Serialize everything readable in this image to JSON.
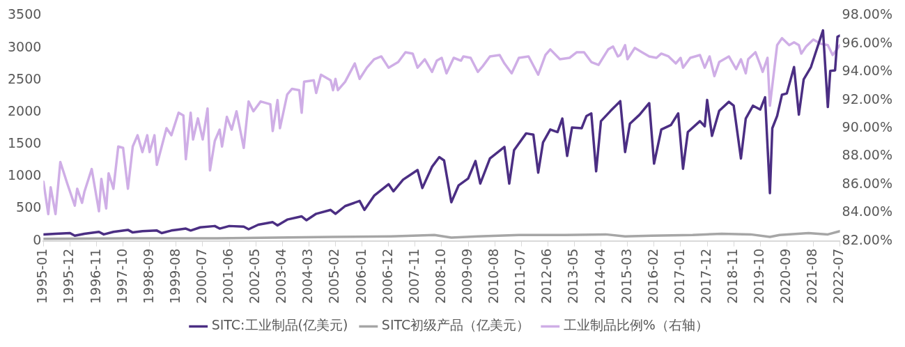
{
  "chart_data": {
    "type": "line",
    "xlim": [
      "1995-01",
      "2022-07"
    ],
    "xticks": [
      "1995-01",
      "1995-12",
      "1996-11",
      "1997-10",
      "1998-09",
      "1999-08",
      "2000-07",
      "2001-06",
      "2002-05",
      "2003-04",
      "2004-03",
      "2005-02",
      "2006-01",
      "2006-12",
      "2007-11",
      "2008-10",
      "2009-09",
      "2010-08",
      "2011-07",
      "2012-06",
      "2013-05",
      "2014-04",
      "2015-03",
      "2016-02",
      "2017-01",
      "2017-12",
      "2018-11",
      "2019-10",
      "2020-09",
      "2021-08",
      "2022-07"
    ],
    "ylim": [
      0,
      3500
    ],
    "yticks": [
      0,
      500,
      1000,
      1500,
      2000,
      2500,
      3000,
      3500
    ],
    "y2lim": [
      82,
      98
    ],
    "y2ticks": [
      {
        "value": 82,
        "label": "82.00%"
      },
      {
        "value": 84,
        "label": "84.00%"
      },
      {
        "value": 86,
        "label": "86.00%"
      },
      {
        "value": 88,
        "label": "88.00%"
      },
      {
        "value": 90,
        "label": "90.00%"
      },
      {
        "value": 92,
        "label": "92.00%"
      },
      {
        "value": 94,
        "label": "94.00%"
      },
      {
        "value": 96,
        "label": "96.00%"
      },
      {
        "value": 98,
        "label": "98.00%"
      }
    ],
    "grid": false,
    "legend": "bottom",
    "marker": "none",
    "line_style": "solid",
    "series": [
      {
        "name": "SITC:工业制品(亿美元)",
        "color": "#4b2e83",
        "x": [
          "1995-01",
          "1995-06",
          "1995-12",
          "1996-02",
          "1996-06",
          "1996-12",
          "1997-02",
          "1997-06",
          "1997-12",
          "1998-02",
          "1998-06",
          "1998-12",
          "1999-02",
          "1999-06",
          "1999-12",
          "2000-02",
          "2000-06",
          "2000-12",
          "2001-02",
          "2001-06",
          "2001-12",
          "2002-02",
          "2002-06",
          "2002-12",
          "2003-02",
          "2003-06",
          "2003-12",
          "2004-02",
          "2004-06",
          "2004-12",
          "2005-02",
          "2005-06",
          "2005-12",
          "2006-02",
          "2006-06",
          "2006-12",
          "2007-02",
          "2007-06",
          "2007-12",
          "2008-02",
          "2008-06",
          "2008-09",
          "2008-11",
          "2009-02",
          "2009-05",
          "2009-09",
          "2009-12",
          "2010-02",
          "2010-06",
          "2010-10",
          "2010-12",
          "2011-02",
          "2011-04",
          "2011-09",
          "2011-12",
          "2012-02",
          "2012-04",
          "2012-07",
          "2012-10",
          "2012-12",
          "2013-02",
          "2013-04",
          "2013-08",
          "2013-10",
          "2013-12",
          "2014-02",
          "2014-04",
          "2014-08",
          "2014-12",
          "2015-02",
          "2015-04",
          "2015-08",
          "2015-12",
          "2016-02",
          "2016-05",
          "2016-09",
          "2016-12",
          "2017-02",
          "2017-04",
          "2017-09",
          "2017-11",
          "2017-12",
          "2018-02",
          "2018-05",
          "2018-09",
          "2018-11",
          "2019-02",
          "2019-04",
          "2019-07",
          "2019-10",
          "2019-12",
          "2020-02",
          "2020-03",
          "2020-05",
          "2020-07",
          "2020-09",
          "2020-12",
          "2021-02",
          "2021-04",
          "2021-07",
          "2021-09",
          "2021-12",
          "2022-02",
          "2022-03",
          "2022-05",
          "2022-06",
          "2022-07"
        ],
        "values": [
          100,
          110,
          120,
          80,
          110,
          140,
          100,
          140,
          170,
          130,
          150,
          160,
          120,
          160,
          190,
          160,
          210,
          230,
          190,
          230,
          220,
          180,
          250,
          290,
          240,
          330,
          380,
          320,
          420,
          480,
          420,
          540,
          620,
          480,
          700,
          880,
          770,
          950,
          1100,
          820,
          1150,
          1300,
          1250,
          600,
          860,
          970,
          1240,
          890,
          1280,
          1400,
          1460,
          890,
          1410,
          1670,
          1650,
          1060,
          1530,
          1730,
          1690,
          1900,
          1320,
          1760,
          1750,
          1940,
          1980,
          1080,
          1860,
          2020,
          2170,
          1380,
          1820,
          1960,
          2140,
          1200,
          1730,
          1800,
          1980,
          1120,
          1690,
          1860,
          1780,
          2190,
          1630,
          2020,
          2160,
          2100,
          1280,
          1900,
          2100,
          2040,
          2230,
          740,
          1750,
          1940,
          2270,
          2290,
          2700,
          1960,
          2510,
          2700,
          2930,
          3270,
          2080,
          2640,
          2650,
          3170,
          3190
        ]
      },
      {
        "name": "SITC初级产品（亿美元）",
        "color": "#a6a6a6",
        "x": [
          "1995-01",
          "1998-01",
          "2001-01",
          "2003-01",
          "2005-01",
          "2007-01",
          "2008-07",
          "2009-02",
          "2010-01",
          "2011-06",
          "2013-01",
          "2014-06",
          "2015-02",
          "2016-01",
          "2017-06",
          "2018-06",
          "2019-06",
          "2020-02",
          "2020-06",
          "2021-06",
          "2022-02",
          "2022-07"
        ],
        "values": [
          30,
          40,
          40,
          50,
          60,
          70,
          90,
          50,
          70,
          90,
          90,
          100,
          70,
          80,
          90,
          110,
          100,
          60,
          90,
          120,
          100,
          150
        ]
      },
      {
        "name": "工业制品比例%（右轴）",
        "color": "#cfaee6",
        "axis": "y2",
        "x": [
          "1995-01",
          "1995-03",
          "1995-04",
          "1995-06",
          "1995-08",
          "1995-11",
          "1996-02",
          "1996-03",
          "1996-05",
          "1996-06",
          "1996-09",
          "1996-12",
          "1997-01",
          "1997-03",
          "1997-04",
          "1997-06",
          "1997-08",
          "1997-10",
          "1997-12",
          "1998-02",
          "1998-04",
          "1998-06",
          "1998-08",
          "1998-09",
          "1998-11",
          "1998-12",
          "1999-02",
          "1999-04",
          "1999-06",
          "1999-09",
          "1999-11",
          "1999-12",
          "2000-02",
          "2000-03",
          "2000-05",
          "2000-07",
          "2000-09",
          "2000-10",
          "2000-12",
          "2001-02",
          "2001-03",
          "2001-05",
          "2001-07",
          "2001-09",
          "2001-12",
          "2002-02",
          "2002-04",
          "2002-07",
          "2002-11",
          "2002-12",
          "2003-02",
          "2003-03",
          "2003-06",
          "2003-08",
          "2003-11",
          "2003-12",
          "2004-01",
          "2004-05",
          "2004-06",
          "2004-08",
          "2004-12",
          "2005-01",
          "2005-02",
          "2005-03",
          "2005-06",
          "2005-10",
          "2005-12",
          "2006-03",
          "2006-06",
          "2006-09",
          "2006-12",
          "2007-04",
          "2007-07",
          "2007-10",
          "2007-12",
          "2008-03",
          "2008-06",
          "2008-08",
          "2008-10",
          "2008-12",
          "2009-03",
          "2009-06",
          "2009-07",
          "2009-10",
          "2010-01",
          "2010-03",
          "2010-06",
          "2010-10",
          "2010-12",
          "2011-03",
          "2011-06",
          "2011-10",
          "2012-02",
          "2012-05",
          "2012-07",
          "2012-11",
          "2013-03",
          "2013-06",
          "2013-09",
          "2013-12",
          "2014-03",
          "2014-07",
          "2014-09",
          "2014-11",
          "2014-12",
          "2015-02",
          "2015-03",
          "2015-06",
          "2015-09",
          "2015-12",
          "2016-03",
          "2016-05",
          "2016-08",
          "2016-11",
          "2017-01",
          "2017-02",
          "2017-05",
          "2017-09",
          "2017-11",
          "2018-01",
          "2018-03",
          "2018-05",
          "2018-09",
          "2018-12",
          "2019-02",
          "2019-04",
          "2019-05",
          "2019-08",
          "2019-10",
          "2019-11",
          "2020-01",
          "2020-02",
          "2020-05",
          "2020-07",
          "2020-10",
          "2020-12",
          "2021-02",
          "2021-03",
          "2021-05",
          "2021-08",
          "2021-11",
          "2022-02",
          "2022-04",
          "2022-07"
        ],
        "values": [
          86.2,
          83.9,
          85.8,
          83.9,
          87.6,
          86.0,
          84.5,
          85.7,
          84.7,
          85.5,
          87.1,
          84.1,
          86.4,
          84.3,
          86.8,
          85.7,
          88.7,
          88.6,
          85.7,
          88.7,
          89.5,
          88.3,
          89.5,
          88.3,
          89.5,
          87.4,
          88.7,
          90.0,
          89.5,
          91.1,
          90.9,
          87.8,
          91.1,
          89.2,
          90.7,
          89.2,
          91.4,
          87.0,
          89.1,
          89.9,
          88.7,
          90.8,
          89.9,
          91.2,
          88.6,
          91.9,
          91.2,
          91.9,
          91.7,
          89.8,
          92.0,
          90.0,
          92.4,
          92.8,
          92.7,
          91.1,
          93.3,
          93.4,
          92.5,
          93.8,
          93.4,
          92.7,
          93.5,
          92.7,
          93.3,
          94.6,
          93.5,
          94.3,
          94.9,
          95.1,
          94.3,
          94.7,
          95.4,
          95.3,
          94.3,
          94.9,
          94.0,
          94.8,
          95.0,
          93.9,
          95.0,
          94.8,
          95.1,
          95.0,
          94.0,
          94.4,
          95.1,
          95.2,
          94.6,
          93.9,
          95.0,
          95.1,
          93.8,
          95.2,
          95.6,
          94.9,
          95.0,
          95.4,
          95.4,
          94.7,
          94.5,
          95.6,
          95.8,
          95.1,
          95.2,
          95.9,
          94.9,
          95.7,
          95.4,
          95.1,
          95.0,
          95.3,
          95.1,
          94.6,
          95.0,
          94.3,
          95.0,
          95.2,
          94.3,
          95.1,
          93.7,
          94.7,
          95.1,
          94.2,
          94.9,
          93.9,
          94.9,
          95.4,
          94.5,
          94.0,
          95.0,
          91.6,
          95.9,
          96.4,
          95.9,
          96.1,
          95.9,
          95.3,
          95.8,
          96.3,
          96.0,
          95.9,
          95.2,
          95.9
        ]
      }
    ]
  }
}
